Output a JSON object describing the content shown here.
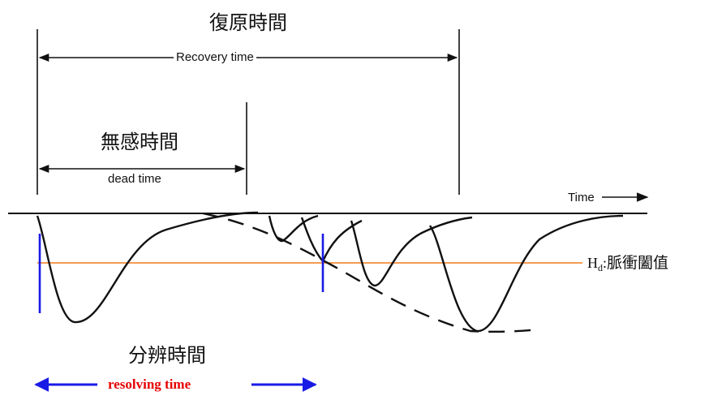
{
  "labels": {
    "recovery_cjk": "復原時間",
    "recovery_en": "Recovery time",
    "dead_cjk": "無感時間",
    "dead_en": "dead time",
    "time_axis": "Time",
    "threshold_symbol": "H",
    "threshold_sub": "d",
    "threshold_text": "脈衝闔值",
    "resolving_cjk": "分辨時間",
    "resolving_en": "resolving time"
  },
  "colors": {
    "ink": "#111111",
    "threshold_line": "#f07a1a",
    "resolving_marker": "#1a1ae6",
    "resolving_text": "#e60000"
  }
}
